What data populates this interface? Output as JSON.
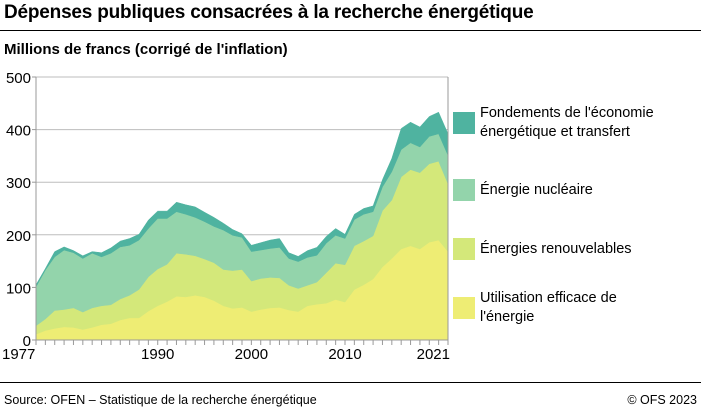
{
  "title": "Dépenses publiques consacrées à la recherche énergétique",
  "subtitle": "Millions de francs (corrigé de l'inflation)",
  "footer": {
    "source": "Source: OFEN – Statistique de la recherche énergétique",
    "copyright": "© OFS 2023"
  },
  "chart_data": {
    "type": "area",
    "stacked": true,
    "title": "Dépenses publiques consacrées à la recherche énergétique",
    "ylabel": "Millions de francs (corrigé de l'inflation)",
    "xlabel": "",
    "ylim": [
      0,
      500
    ],
    "xlim": [
      1977,
      2021
    ],
    "yticks": [
      "0",
      "100",
      "200",
      "300",
      "400",
      "500"
    ],
    "xtick_labels": [
      "1977",
      "1990",
      "2000",
      "2010",
      "2021"
    ],
    "grid": "horizontal",
    "legend_placement": "right",
    "x": [
      1977,
      1978,
      1979,
      1980,
      1981,
      1982,
      1983,
      1984,
      1985,
      1986,
      1987,
      1988,
      1989,
      1990,
      1991,
      1992,
      1993,
      1994,
      1995,
      1996,
      1997,
      1998,
      1999,
      2000,
      2001,
      2002,
      2003,
      2004,
      2005,
      2006,
      2007,
      2008,
      2009,
      2010,
      2011,
      2012,
      2013,
      2014,
      2015,
      2016,
      2017,
      2018,
      2019,
      2020,
      2021
    ],
    "series": [
      {
        "name": "Utilisation efficace de l'énergie",
        "color": "#eeed74",
        "values": [
          11,
          18,
          22,
          25,
          24,
          20,
          24,
          29,
          31,
          38,
          42,
          42,
          55,
          65,
          73,
          83,
          82,
          85,
          82,
          75,
          65,
          60,
          62,
          54,
          58,
          61,
          62,
          57,
          54,
          65,
          68,
          70,
          77,
          72,
          96,
          105,
          116,
          139,
          155,
          173,
          179,
          173,
          186,
          190,
          168
        ]
      },
      {
        "name": "Énergies renouvelables",
        "color": "#d4e87a",
        "values": [
          16,
          22,
          34,
          33,
          37,
          33,
          37,
          36,
          36,
          40,
          43,
          54,
          65,
          70,
          71,
          82,
          81,
          75,
          72,
          72,
          69,
          72,
          72,
          58,
          59,
          58,
          56,
          47,
          44,
          39,
          42,
          58,
          69,
          71,
          83,
          83,
          82,
          107,
          111,
          137,
          145,
          145,
          149,
          150,
          129
        ]
      },
      {
        "name": "Énergie nucléaire",
        "color": "#93d4ab",
        "values": [
          74,
          93,
          102,
          113,
          105,
          102,
          104,
          93,
          98,
          99,
          95,
          94,
          92,
          96,
          87,
          79,
          76,
          73,
          71,
          69,
          75,
          67,
          61,
          56,
          54,
          55,
          58,
          51,
          51,
          53,
          51,
          56,
          53,
          50,
          50,
          51,
          46,
          45,
          54,
          52,
          51,
          49,
          52,
          52,
          54
        ]
      },
      {
        "name": "Fondements de l'économie énergétique et transfert",
        "color": "#4fb3a0",
        "values": [
          4,
          3,
          10,
          6,
          4,
          5,
          3,
          8,
          10,
          11,
          13,
          11,
          16,
          14,
          14,
          18,
          18,
          20,
          18,
          17,
          13,
          11,
          7,
          12,
          14,
          16,
          17,
          11,
          10,
          13,
          15,
          13,
          13,
          8,
          10,
          11,
          11,
          14,
          25,
          40,
          39,
          38,
          38,
          41,
          41
        ]
      }
    ]
  }
}
